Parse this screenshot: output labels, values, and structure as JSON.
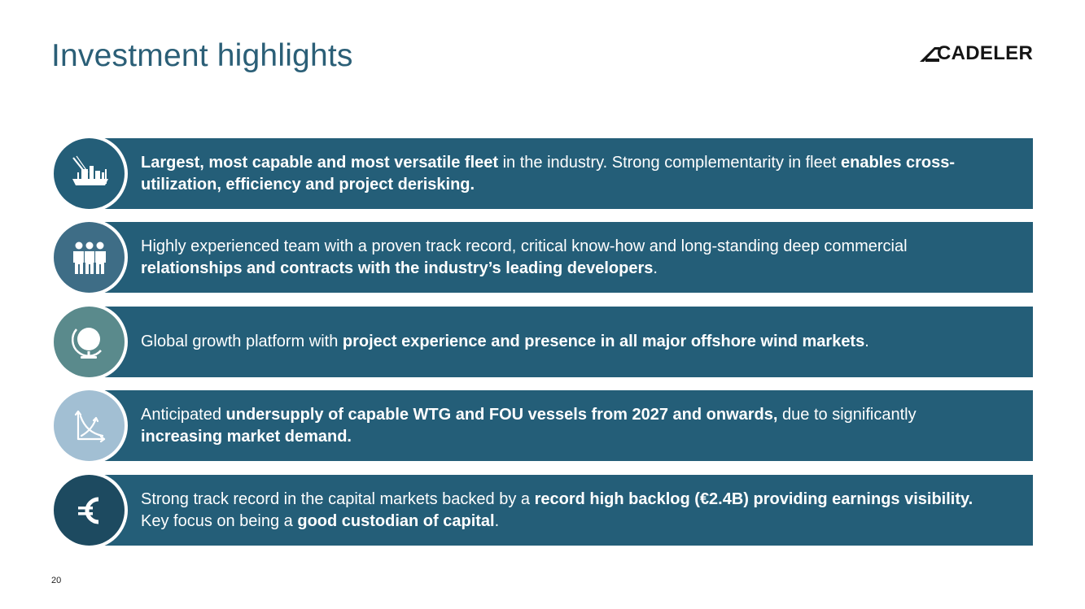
{
  "header": {
    "title": "Investment highlights",
    "logo_text": "CADELER"
  },
  "highlights": [
    {
      "icon": "offshore-vessel-icon",
      "circle_color": "#245e78",
      "segments": [
        {
          "text": "Largest, most capable and most versatile fleet",
          "bold": true
        },
        {
          "text": " in the industry. Strong complementarity in fleet ",
          "bold": false
        },
        {
          "text": "enables cross-utilization, efficiency and project derisking.",
          "bold": true
        }
      ]
    },
    {
      "icon": "team-icon",
      "circle_color": "#3e6d86",
      "segments": [
        {
          "text": "Highly experienced team with a proven track record, critical know-how and long-standing deep commercial ",
          "bold": false
        },
        {
          "text": "relationships and contracts with the industry’s leading developers",
          "bold": true
        },
        {
          "text": ".",
          "bold": false
        }
      ]
    },
    {
      "icon": "globe-icon",
      "circle_color": "#5a8a8c",
      "segments": [
        {
          "text": "Global growth platform with ",
          "bold": false
        },
        {
          "text": "project experience and presence in all major offshore wind markets",
          "bold": true
        },
        {
          "text": ".",
          "bold": false
        }
      ]
    },
    {
      "icon": "supply-demand-chart-icon",
      "circle_color": "#a2bfd3",
      "segments": [
        {
          "text": "Anticipated ",
          "bold": false
        },
        {
          "text": "undersupply of capable WTG and FOU vessels from 2027 and onwards,",
          "bold": true
        },
        {
          "text": " due to significantly ",
          "bold": false
        },
        {
          "text": "increasing market demand.",
          "bold": true
        }
      ]
    },
    {
      "icon": "euro-icon",
      "circle_color": "#1d4a60",
      "segments": [
        {
          "text": "Strong track record in the capital markets backed by a ",
          "bold": false
        },
        {
          "text": "record high backlog (€2.4B) providing earnings visibility.",
          "bold": true
        },
        {
          "text": " Key focus on being a ",
          "bold": false
        },
        {
          "text": "good custodian of capital",
          "bold": true
        },
        {
          "text": ".",
          "bold": false
        }
      ]
    }
  ],
  "footer": {
    "page_number": "20"
  }
}
